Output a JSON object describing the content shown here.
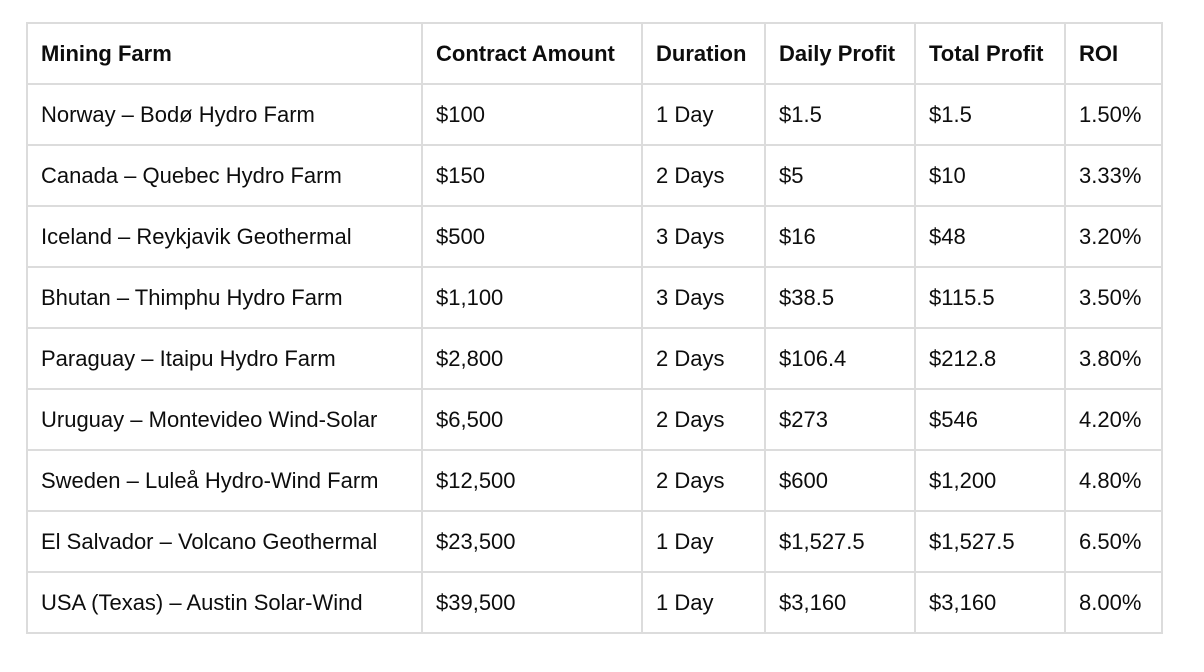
{
  "table": {
    "headers": [
      "Mining Farm",
      "Contract Amount",
      "Duration",
      "Daily Profit",
      "Total Profit",
      "ROI"
    ],
    "rows": [
      [
        "Norway – Bodø Hydro Farm",
        "$100",
        "1 Day",
        "$1.5",
        "$1.5",
        "1.50%"
      ],
      [
        "Canada – Quebec Hydro Farm",
        "$150",
        "2 Days",
        "$5",
        "$10",
        "3.33%"
      ],
      [
        "Iceland – Reykjavik Geothermal",
        "$500",
        "3 Days",
        "$16",
        "$48",
        "3.20%"
      ],
      [
        "Bhutan – Thimphu Hydro Farm",
        "$1,100",
        "3 Days",
        "$38.5",
        "$115.5",
        "3.50%"
      ],
      [
        "Paraguay – Itaipu Hydro Farm",
        "$2,800",
        "2 Days",
        "$106.4",
        "$212.8",
        "3.80%"
      ],
      [
        "Uruguay – Montevideo Wind-Solar",
        "$6,500",
        "2 Days",
        "$273",
        "$546",
        "4.20%"
      ],
      [
        "Sweden – Luleå Hydro-Wind Farm",
        "$12,500",
        "2 Days",
        "$600",
        "$1,200",
        "4.80%"
      ],
      [
        "El Salvador – Volcano Geothermal",
        "$23,500",
        "1 Day",
        "$1,527.5",
        "$1,527.5",
        "6.50%"
      ],
      [
        "USA (Texas) – Austin Solar-Wind",
        "$39,500",
        "1 Day",
        "$3,160",
        "$3,160",
        "8.00%"
      ]
    ]
  }
}
